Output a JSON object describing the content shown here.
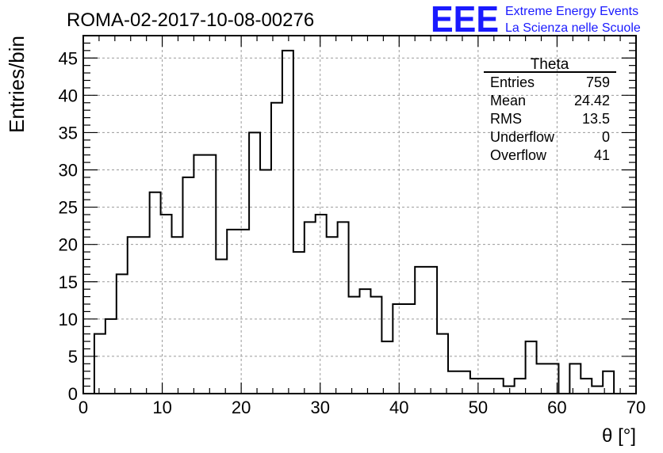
{
  "header": {
    "run_title": "ROMA-02-2017-10-08-00276",
    "logo_text": "EEE",
    "logo_line1": "Extreme Energy Events",
    "logo_line2": "La Scienza nelle Scuole",
    "logo_color": "#1a1aff"
  },
  "stats_box": {
    "title": "Theta",
    "rows": [
      {
        "label": "Entries",
        "value": "759"
      },
      {
        "label": "Mean",
        "value": "24.42"
      },
      {
        "label": "RMS",
        "value": "13.5"
      },
      {
        "label": "Underflow",
        "value": "0"
      },
      {
        "label": "Overflow",
        "value": "41"
      }
    ]
  },
  "chart_data": {
    "type": "bar",
    "histogram": true,
    "xlabel": "θ [°]",
    "ylabel": "Entries/bin",
    "xlim": [
      0,
      70
    ],
    "ylim": [
      0,
      48
    ],
    "x_ticks": [
      0,
      10,
      20,
      30,
      40,
      50,
      60,
      70
    ],
    "y_ticks": [
      0,
      5,
      10,
      15,
      20,
      25,
      30,
      35,
      40,
      45
    ],
    "grid": true,
    "bin_width": 1.4,
    "bin_start": 1.4,
    "values": [
      8,
      10,
      16,
      21,
      21,
      27,
      24,
      21,
      29,
      32,
      32,
      18,
      22,
      22,
      35,
      30,
      39,
      46,
      19,
      23,
      24,
      21,
      23,
      13,
      14,
      13,
      7,
      12,
      12,
      17,
      17,
      8,
      3,
      3,
      2,
      2,
      2,
      1,
      2,
      7,
      4,
      4,
      0,
      4,
      2,
      1,
      3,
      0
    ]
  }
}
